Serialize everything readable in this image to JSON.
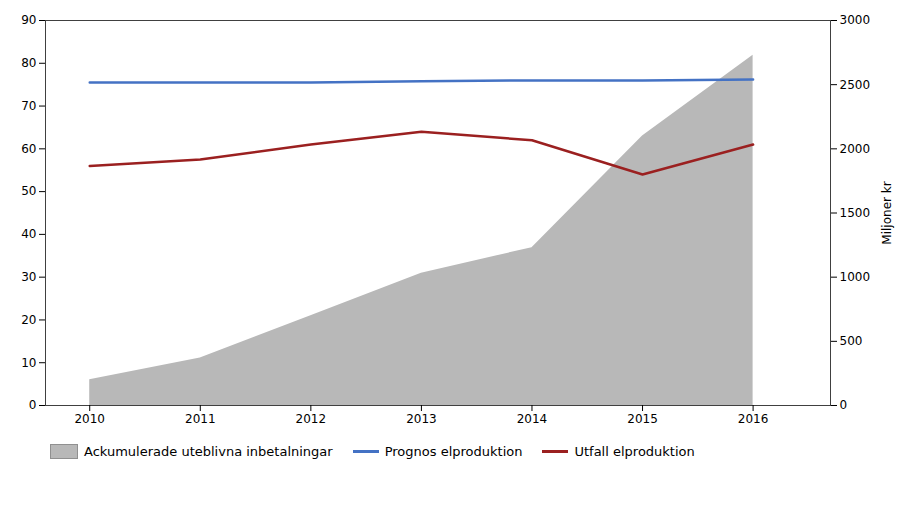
{
  "chart_data": {
    "type": "line",
    "x": [
      2010,
      2011,
      2012,
      2013,
      2014,
      2015,
      2016
    ],
    "xlim": [
      2009.6,
      2016.7
    ],
    "xticks": [
      2010,
      2011,
      2012,
      2013,
      2014,
      2015,
      2016
    ],
    "ylim": [
      0,
      90
    ],
    "yticks": [
      0,
      10,
      20,
      30,
      40,
      50,
      60,
      70,
      80,
      90
    ],
    "y2lim": [
      0,
      3000
    ],
    "y2ticks": [
      0,
      500,
      1000,
      1500,
      2000,
      2500,
      3000
    ],
    "y2label": "Miljoner kr",
    "grid": false,
    "legend": "bottom",
    "series": [
      {
        "name": "Ackumulerade uteblivna inbetalningar",
        "type": "area",
        "axis": "y2",
        "color": "#b8b8b8",
        "values": [
          200,
          370,
          700,
          1030,
          1230,
          2100,
          2730
        ]
      },
      {
        "name": "Prognos elproduktion",
        "type": "line",
        "color": "#4472C4",
        "values": [
          75.5,
          75.5,
          75.5,
          75.8,
          76.0,
          76.0,
          76.2
        ]
      },
      {
        "name": "Utfall elproduktion",
        "type": "line",
        "color": "#9B2020",
        "values": [
          56.0,
          57.5,
          61.0,
          64.0,
          62.0,
          54.0,
          61.0
        ]
      }
    ]
  }
}
